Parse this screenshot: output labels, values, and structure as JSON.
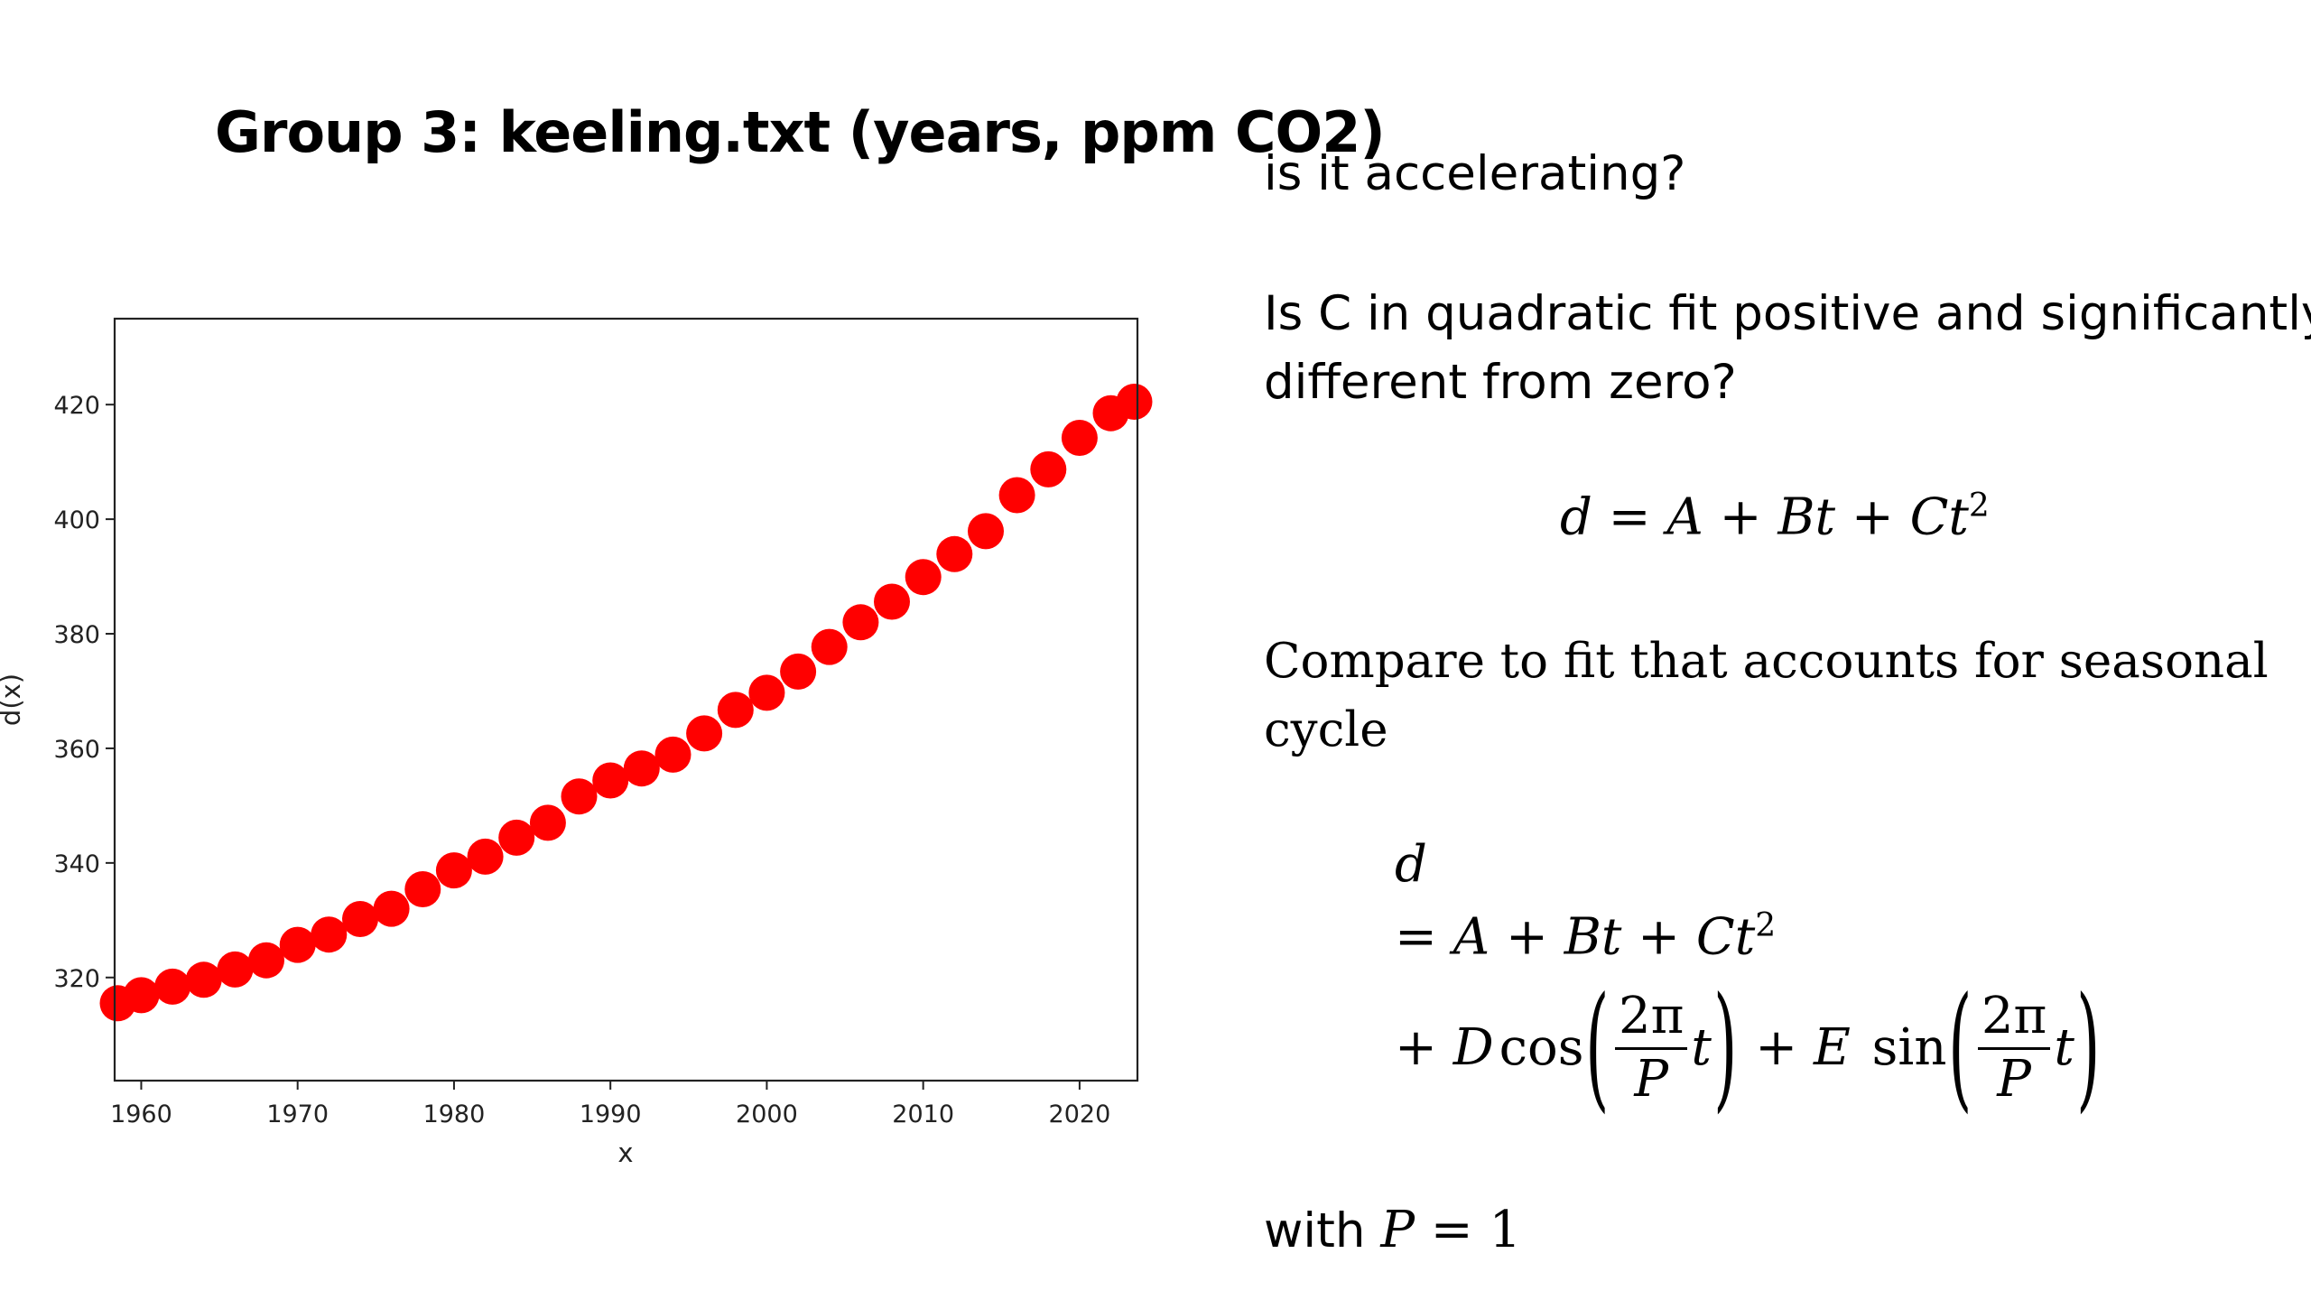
{
  "slide": {
    "title": "Group 3: keeling.txt (years, ppm CO2)",
    "question1": "is it accelerating?",
    "question2_line1": "Is C in quadratic fit positive and significantly",
    "question2_line2": "different from zero?",
    "compare_line1": "Compare to fit that accounts for seasonal",
    "compare_line2": "cycle",
    "with_text": "with",
    "eq_quadratic": {
      "lhs": "d",
      "eq": " = ",
      "a": "A",
      "plus1": " + ",
      "bt": "Bt",
      "plus2": " + ",
      "ct": "Ct",
      "sq": "2"
    },
    "eq_seasonal": {
      "lhs": "d",
      "line2_eq": "= ",
      "line2_a": "A",
      "line2_plus1": " + ",
      "line2_bt": "Bt",
      "line2_plus2": " + ",
      "line2_ct": "Ct",
      "line2_sq": "2",
      "plus_d": "+ D ",
      "cos": "cos",
      "frac_num": "2π",
      "frac_den": "P",
      "t": "t",
      "plus_e": " + E ",
      "sin": "sin"
    },
    "with_eq": {
      "p": "P",
      "eq": " = ",
      "one": "1"
    }
  },
  "chart_data": {
    "type": "scatter",
    "title": "",
    "xlabel": "x",
    "ylabel": "d(x)",
    "xlim": [
      1958.3,
      2023.7
    ],
    "ylim": [
      302,
      435
    ],
    "xticks": [
      1960,
      1970,
      1980,
      1990,
      2000,
      2010,
      2020
    ],
    "yticks": [
      320,
      340,
      360,
      380,
      400,
      420
    ],
    "grid": false,
    "marker_color": "#ff0000",
    "series": [
      {
        "x": [
          1958.5,
          1960,
          1962,
          1964,
          1966,
          1968,
          1970,
          1972,
          1974,
          1976,
          1978,
          1980,
          1982,
          1984,
          1986,
          1988,
          1990,
          1992,
          1994,
          1996,
          1998,
          2000,
          2002,
          2004,
          2006,
          2008,
          2010,
          2012,
          2014,
          2016,
          2018,
          2020,
          2022,
          2023.5
        ],
        "y": [
          315.5,
          316.9,
          318.4,
          319.6,
          321.4,
          323.0,
          325.7,
          327.5,
          330.2,
          332.0,
          335.4,
          338.7,
          341.1,
          344.4,
          347.0,
          351.6,
          354.4,
          356.5,
          358.9,
          362.6,
          366.7,
          369.7,
          373.4,
          377.7,
          382.0,
          385.6,
          389.9,
          393.9,
          397.9,
          404.2,
          408.7,
          414.2,
          418.5,
          420.5
        ]
      }
    ]
  }
}
